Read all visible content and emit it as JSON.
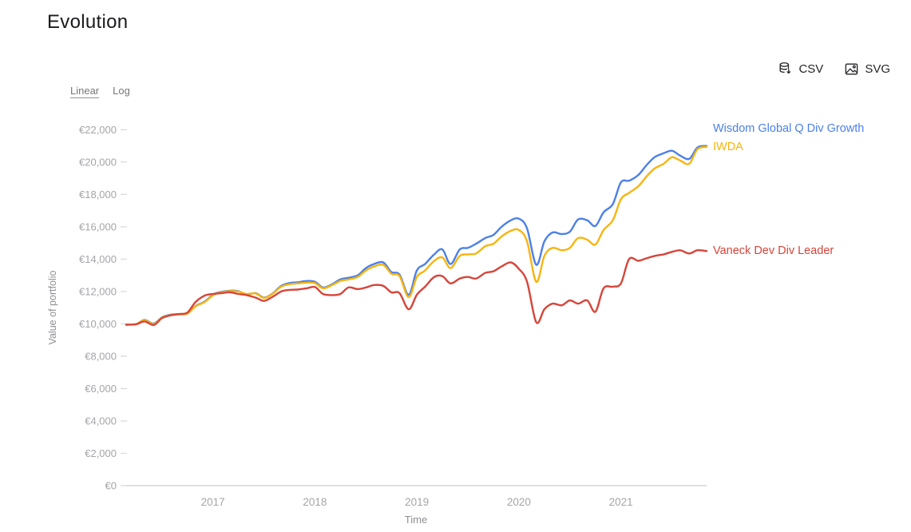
{
  "toolbar": {
    "csv_label": "CSV",
    "svg_label": "SVG"
  },
  "scale_toggle": {
    "options": [
      {
        "label": "Linear",
        "active": true
      },
      {
        "label": "Log",
        "active": false
      }
    ]
  },
  "chart_data": {
    "type": "line",
    "title": "Evolution",
    "xlabel": "Time",
    "ylabel": "Value of portfolio",
    "ylim": [
      0,
      22000
    ],
    "ytick_step": 2000,
    "ytick_labels": [
      "€0",
      "€2,000",
      "€4,000",
      "€6,000",
      "€8,000",
      "€10,000",
      "€12,000",
      "€14,000",
      "€16,000",
      "€18,000",
      "€20,000",
      "€22,000"
    ],
    "xticks": [
      2017,
      2018,
      2019,
      2020,
      2021
    ],
    "xtick_labels": [
      "2017",
      "2018",
      "2019",
      "2020",
      "2021"
    ],
    "grid": false,
    "legend_position": "end-of-line",
    "x": [
      2016.15,
      2016.25,
      2016.33,
      2016.42,
      2016.5,
      2016.58,
      2016.67,
      2016.75,
      2016.83,
      2016.92,
      2017,
      2017.08,
      2017.17,
      2017.25,
      2017.33,
      2017.42,
      2017.5,
      2017.58,
      2017.67,
      2017.75,
      2017.83,
      2017.92,
      2018,
      2018.08,
      2018.17,
      2018.25,
      2018.33,
      2018.42,
      2018.5,
      2018.58,
      2018.67,
      2018.75,
      2018.83,
      2018.92,
      2019,
      2019.08,
      2019.17,
      2019.25,
      2019.33,
      2019.42,
      2019.5,
      2019.58,
      2019.67,
      2019.75,
      2019.83,
      2019.92,
      2020,
      2020.08,
      2020.17,
      2020.25,
      2020.33,
      2020.42,
      2020.5,
      2020.58,
      2020.67,
      2020.75,
      2020.83,
      2020.92,
      2021,
      2021.08,
      2021.17,
      2021.25,
      2021.33,
      2021.42,
      2021.5,
      2021.58,
      2021.67,
      2021.75,
      2021.84
    ],
    "series": [
      {
        "name": "Wisdom Global Q Div Growth",
        "color": "#4b80e8",
        "values": [
          9950,
          10000,
          10250,
          10020,
          10400,
          10560,
          10600,
          10650,
          11100,
          11380,
          11800,
          11980,
          12050,
          12020,
          11820,
          11900,
          11620,
          11850,
          12350,
          12520,
          12570,
          12650,
          12600,
          12250,
          12450,
          12750,
          12850,
          13000,
          13450,
          13700,
          13800,
          13200,
          13050,
          11800,
          13300,
          13700,
          14300,
          14600,
          13700,
          14600,
          14700,
          14950,
          15300,
          15500,
          16000,
          16400,
          16500,
          15900,
          13650,
          15100,
          15650,
          15550,
          15700,
          16450,
          16400,
          16050,
          16900,
          17400,
          18750,
          18850,
          19200,
          19800,
          20300,
          20550,
          20700,
          20400,
          20200,
          20900,
          21000
        ]
      },
      {
        "name": "IWDA",
        "color": "#f7b50e",
        "values": [
          9950,
          10000,
          10220,
          10000,
          10380,
          10540,
          10580,
          10630,
          11080,
          11350,
          11760,
          11950,
          12020,
          12000,
          11850,
          11880,
          11600,
          11830,
          12300,
          12450,
          12500,
          12550,
          12520,
          12200,
          12400,
          12650,
          12750,
          12900,
          13300,
          13550,
          13650,
          13100,
          12950,
          11650,
          12900,
          13300,
          13900,
          14100,
          13450,
          14200,
          14300,
          14350,
          14800,
          14950,
          15400,
          15750,
          15800,
          15100,
          12600,
          14200,
          14700,
          14550,
          14700,
          15300,
          15200,
          14900,
          15800,
          16400,
          17700,
          18100,
          18500,
          19100,
          19600,
          19900,
          20300,
          20100,
          19900,
          20800,
          20950
        ]
      },
      {
        "name": "Vaneck Dev Div Leader",
        "color": "#d6453a",
        "values": [
          9950,
          9980,
          10150,
          9930,
          10350,
          10520,
          10610,
          10700,
          11350,
          11750,
          11850,
          11900,
          11950,
          11850,
          11780,
          11620,
          11420,
          11650,
          12000,
          12100,
          12120,
          12200,
          12280,
          11850,
          11780,
          11850,
          12250,
          12150,
          12250,
          12400,
          12350,
          11950,
          11900,
          10900,
          11800,
          12300,
          12900,
          12950,
          12500,
          12800,
          12900,
          12800,
          13150,
          13250,
          13550,
          13800,
          13400,
          12600,
          10100,
          10900,
          11250,
          11150,
          11450,
          11250,
          11450,
          10750,
          12200,
          12300,
          12500,
          14000,
          13900,
          14050,
          14200,
          14300,
          14450,
          14550,
          14350,
          14550,
          14500
        ]
      }
    ]
  }
}
